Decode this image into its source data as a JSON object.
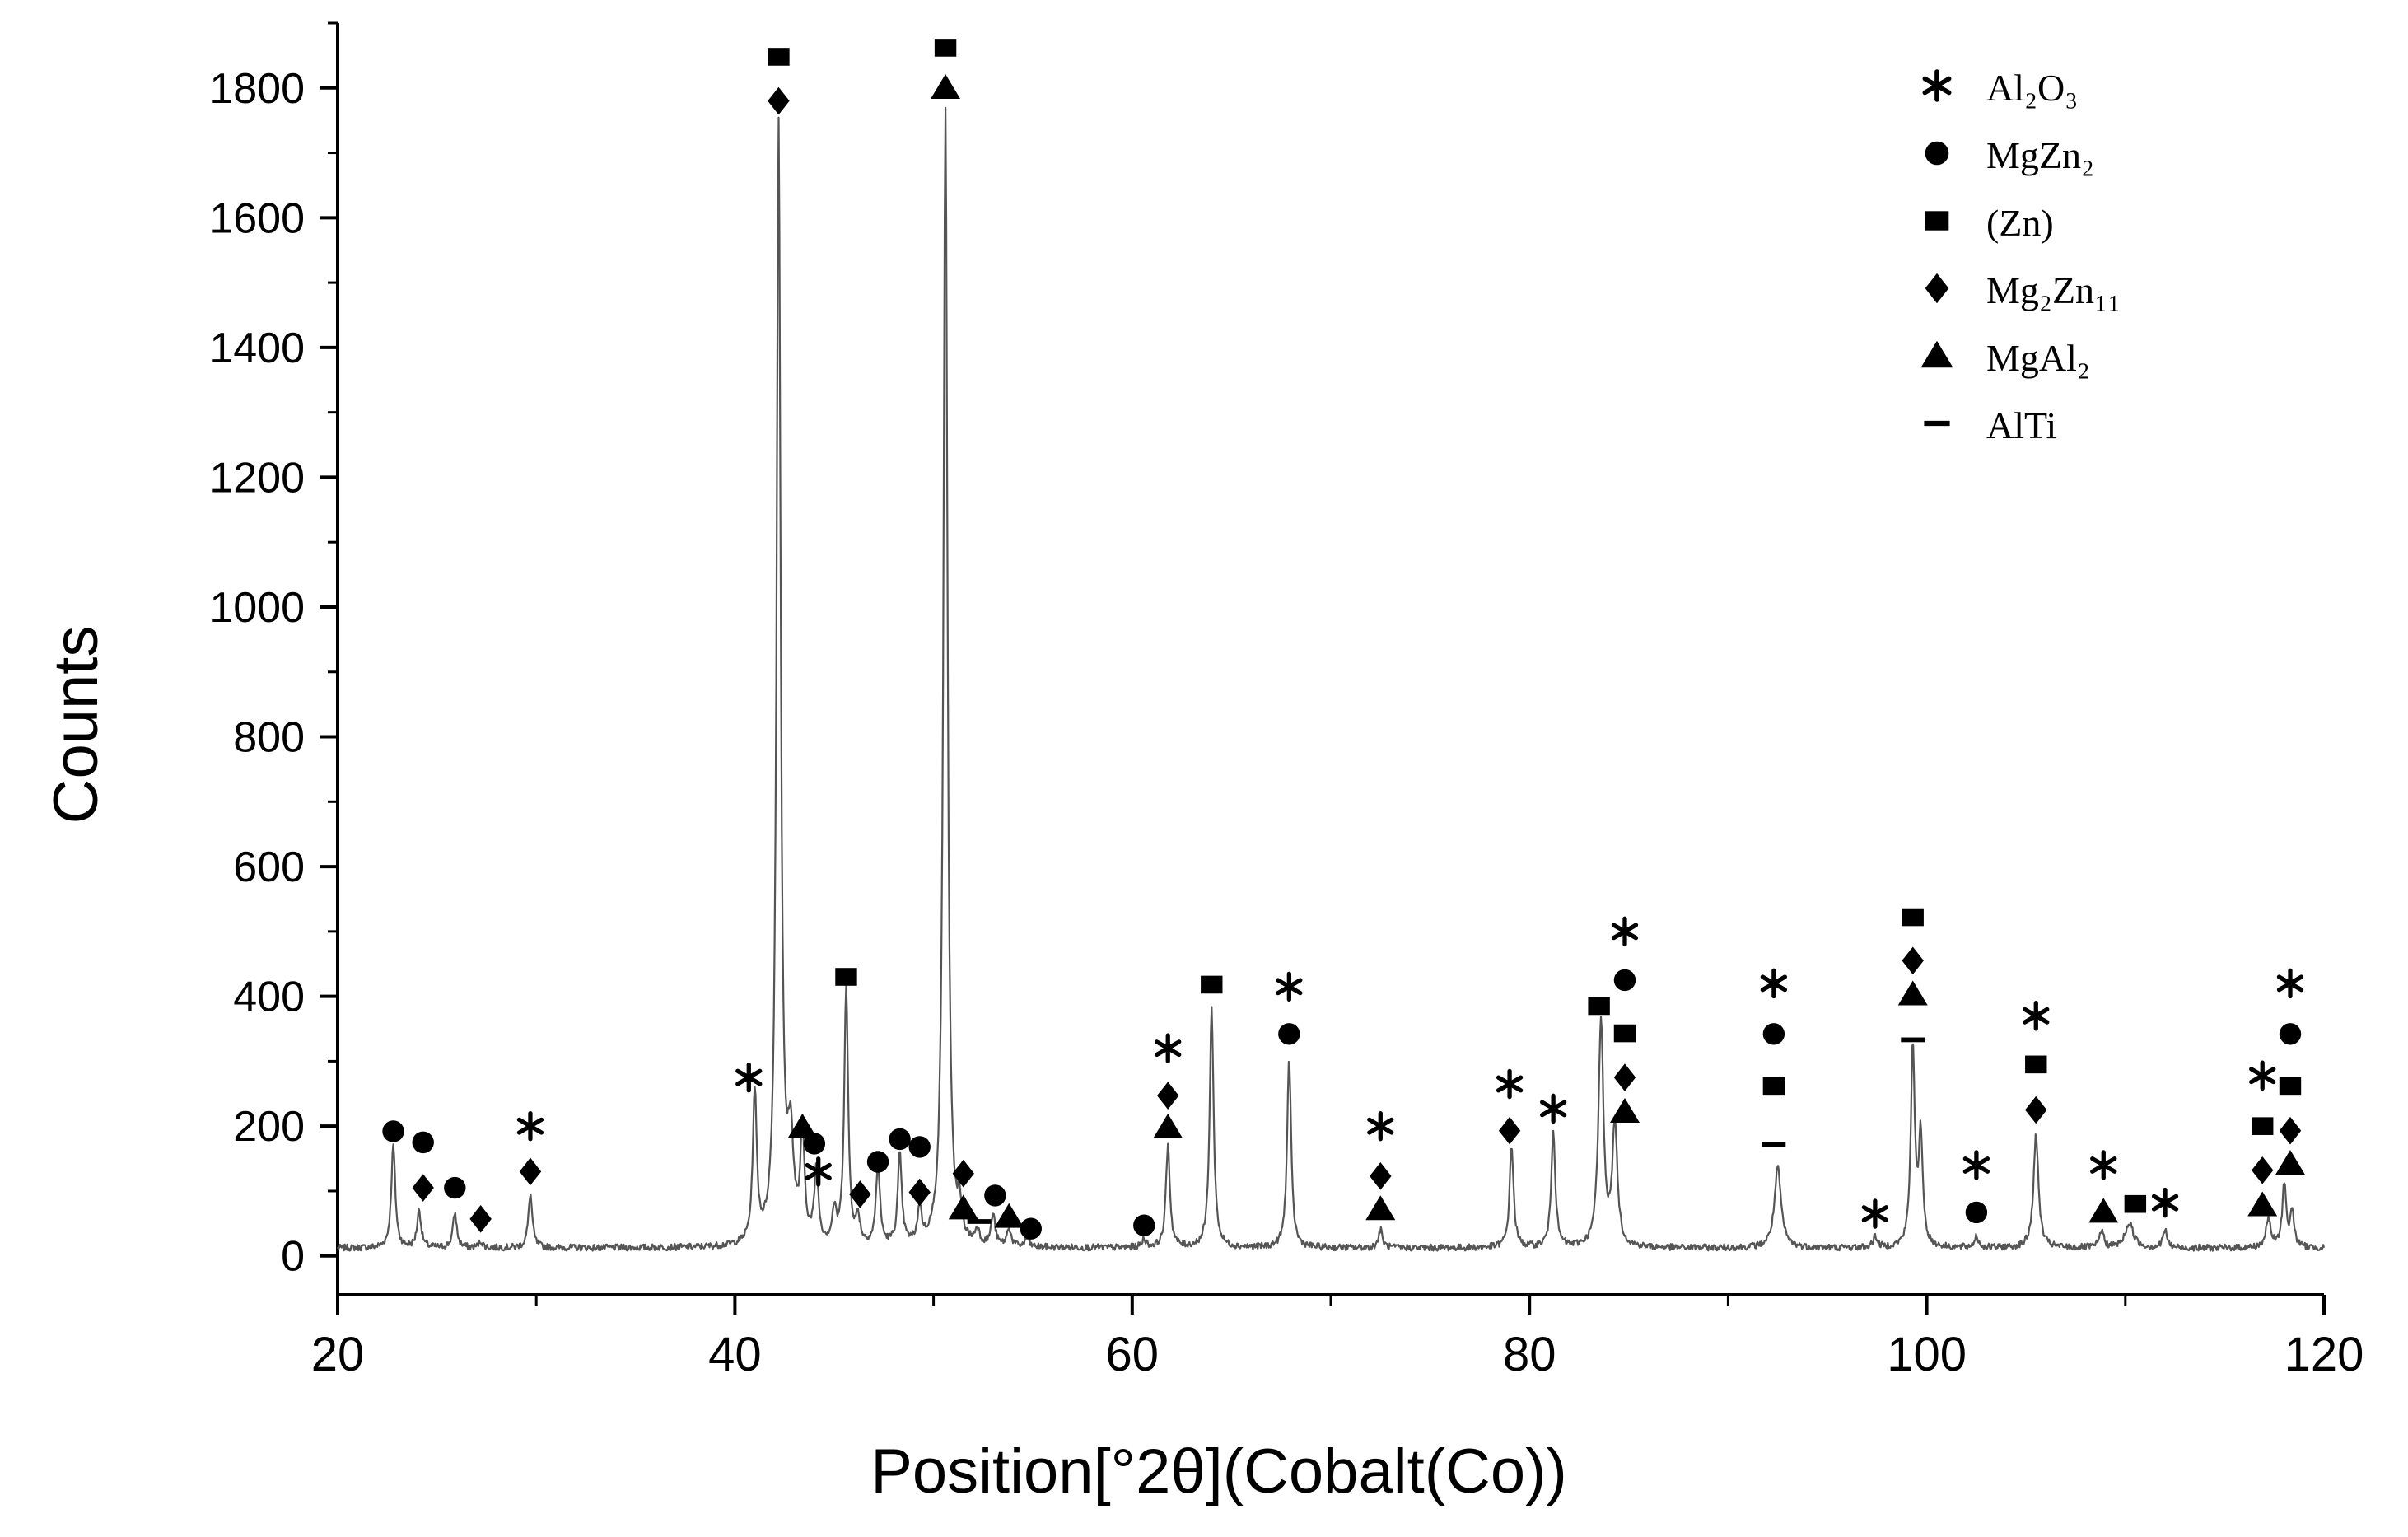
{
  "chart_data": {
    "type": "line",
    "title": "",
    "xlabel": "Position[°2θ](Cobalt(Co))",
    "ylabel": "Counts",
    "xlim": [
      20,
      120
    ],
    "ylim": [
      -60,
      1900
    ],
    "xticks": [
      "20",
      "40",
      "60",
      "80",
      "100",
      "120"
    ],
    "yticks": [
      "0",
      "200",
      "400",
      "600",
      "800",
      "1000",
      "1200",
      "1400",
      "1600",
      "1800"
    ],
    "grid": false,
    "legend_position": "top-right",
    "color": "#555555",
    "baseline": 12,
    "peaks": [
      {
        "x": 22.8,
        "y": 170,
        "w": 0.12
      },
      {
        "x": 24.1,
        "y": 70,
        "w": 0.12
      },
      {
        "x": 25.9,
        "y": 65,
        "w": 0.12
      },
      {
        "x": 27.2,
        "y": 22,
        "w": 0.12
      },
      {
        "x": 29.7,
        "y": 95,
        "w": 0.12
      },
      {
        "x": 41.0,
        "y": 245,
        "w": 0.12
      },
      {
        "x": 42.2,
        "y": 1740,
        "w": 0.12
      },
      {
        "x": 42.8,
        "y": 160,
        "w": 0.18
      },
      {
        "x": 43.4,
        "y": 180,
        "w": 0.12
      },
      {
        "x": 44.1,
        "y": 125,
        "w": 0.12
      },
      {
        "x": 45.0,
        "y": 60,
        "w": 0.12
      },
      {
        "x": 45.6,
        "y": 405,
        "w": 0.12
      },
      {
        "x": 46.2,
        "y": 50,
        "w": 0.12
      },
      {
        "x": 47.2,
        "y": 135,
        "w": 0.12
      },
      {
        "x": 48.3,
        "y": 150,
        "w": 0.12
      },
      {
        "x": 49.3,
        "y": 65,
        "w": 0.12
      },
      {
        "x": 50.6,
        "y": 1770,
        "w": 0.12
      },
      {
        "x": 51.3,
        "y": 60,
        "w": 0.12
      },
      {
        "x": 52.2,
        "y": 35,
        "w": 0.12
      },
      {
        "x": 53.0,
        "y": 60,
        "w": 0.12
      },
      {
        "x": 53.8,
        "y": 40,
        "w": 0.12
      },
      {
        "x": 54.7,
        "y": 25,
        "w": 0.12
      },
      {
        "x": 60.6,
        "y": 25,
        "w": 0.12
      },
      {
        "x": 61.8,
        "y": 170,
        "w": 0.12
      },
      {
        "x": 64.0,
        "y": 380,
        "w": 0.12
      },
      {
        "x": 67.9,
        "y": 305,
        "w": 0.12
      },
      {
        "x": 72.5,
        "y": 40,
        "w": 0.12
      },
      {
        "x": 79.1,
        "y": 170,
        "w": 0.12
      },
      {
        "x": 81.2,
        "y": 195,
        "w": 0.12
      },
      {
        "x": 83.6,
        "y": 360,
        "w": 0.15
      },
      {
        "x": 84.3,
        "y": 200,
        "w": 0.15
      },
      {
        "x": 92.5,
        "y": 135,
        "w": 0.2
      },
      {
        "x": 97.4,
        "y": 30,
        "w": 0.12
      },
      {
        "x": 99.3,
        "y": 320,
        "w": 0.12
      },
      {
        "x": 99.7,
        "y": 180,
        "w": 0.12
      },
      {
        "x": 102.5,
        "y": 30,
        "w": 0.12
      },
      {
        "x": 105.5,
        "y": 185,
        "w": 0.15
      },
      {
        "x": 108.8,
        "y": 40,
        "w": 0.12
      },
      {
        "x": 110.2,
        "y": 50,
        "w": 0.25
      },
      {
        "x": 112.0,
        "y": 40,
        "w": 0.12
      },
      {
        "x": 117.2,
        "y": 55,
        "w": 0.15
      },
      {
        "x": 118.0,
        "y": 110,
        "w": 0.12
      },
      {
        "x": 118.4,
        "y": 65,
        "w": 0.12
      }
    ],
    "legend": [
      {
        "marker": "star",
        "label": "Al₂O₃"
      },
      {
        "marker": "circle",
        "label": "MgZn₂"
      },
      {
        "marker": "square",
        "label": "(Zn)"
      },
      {
        "marker": "diamond",
        "label": "Mg₂Zn₁₁"
      },
      {
        "marker": "triangle",
        "label": "MgAl₂"
      },
      {
        "marker": "dash",
        "label": "AlTi"
      }
    ],
    "annotations": [
      {
        "x": 22.8,
        "y": 192,
        "marker": "circle"
      },
      {
        "x": 24.3,
        "y": 175,
        "marker": "circle"
      },
      {
        "x": 24.3,
        "y": 105,
        "marker": "diamond"
      },
      {
        "x": 25.9,
        "y": 105,
        "marker": "circle"
      },
      {
        "x": 27.2,
        "y": 57,
        "marker": "diamond"
      },
      {
        "x": 29.7,
        "y": 200,
        "marker": "star"
      },
      {
        "x": 29.7,
        "y": 130,
        "marker": "diamond"
      },
      {
        "x": 40.7,
        "y": 275,
        "marker": "star"
      },
      {
        "x": 42.2,
        "y": 1848,
        "marker": "square"
      },
      {
        "x": 42.2,
        "y": 1780,
        "marker": "diamond"
      },
      {
        "x": 43.4,
        "y": 198,
        "marker": "triangle"
      },
      {
        "x": 44.0,
        "y": 173,
        "marker": "circle"
      },
      {
        "x": 44.2,
        "y": 130,
        "marker": "star"
      },
      {
        "x": 45.6,
        "y": 430,
        "marker": "square"
      },
      {
        "x": 46.3,
        "y": 95,
        "marker": "diamond"
      },
      {
        "x": 47.2,
        "y": 145,
        "marker": "circle"
      },
      {
        "x": 48.3,
        "y": 180,
        "marker": "circle"
      },
      {
        "x": 49.3,
        "y": 168,
        "marker": "circle"
      },
      {
        "x": 49.3,
        "y": 98,
        "marker": "diamond"
      },
      {
        "x": 50.6,
        "y": 1862,
        "marker": "square"
      },
      {
        "x": 50.6,
        "y": 1800,
        "marker": "triangle"
      },
      {
        "x": 51.5,
        "y": 127,
        "marker": "diamond"
      },
      {
        "x": 51.5,
        "y": 73,
        "marker": "triangle"
      },
      {
        "x": 52.3,
        "y": 53,
        "marker": "dash"
      },
      {
        "x": 53.1,
        "y": 93,
        "marker": "circle"
      },
      {
        "x": 53.8,
        "y": 60,
        "marker": "triangle"
      },
      {
        "x": 54.9,
        "y": 42,
        "marker": "circle"
      },
      {
        "x": 60.6,
        "y": 47,
        "marker": "circle"
      },
      {
        "x": 61.8,
        "y": 320,
        "marker": "star"
      },
      {
        "x": 61.8,
        "y": 247,
        "marker": "diamond"
      },
      {
        "x": 61.8,
        "y": 198,
        "marker": "triangle"
      },
      {
        "x": 64.0,
        "y": 418,
        "marker": "square"
      },
      {
        "x": 67.9,
        "y": 415,
        "marker": "star"
      },
      {
        "x": 67.9,
        "y": 342,
        "marker": "circle"
      },
      {
        "x": 72.5,
        "y": 200,
        "marker": "star"
      },
      {
        "x": 72.5,
        "y": 123,
        "marker": "diamond"
      },
      {
        "x": 72.5,
        "y": 72,
        "marker": "triangle"
      },
      {
        "x": 79.0,
        "y": 265,
        "marker": "star"
      },
      {
        "x": 79.0,
        "y": 193,
        "marker": "diamond"
      },
      {
        "x": 81.2,
        "y": 227,
        "marker": "star"
      },
      {
        "x": 83.5,
        "y": 385,
        "marker": "square"
      },
      {
        "x": 84.8,
        "y": 500,
        "marker": "star"
      },
      {
        "x": 84.8,
        "y": 425,
        "marker": "circle"
      },
      {
        "x": 84.8,
        "y": 343,
        "marker": "square"
      },
      {
        "x": 84.8,
        "y": 275,
        "marker": "diamond"
      },
      {
        "x": 84.8,
        "y": 222,
        "marker": "triangle"
      },
      {
        "x": 92.3,
        "y": 420,
        "marker": "star"
      },
      {
        "x": 92.3,
        "y": 342,
        "marker": "circle"
      },
      {
        "x": 92.3,
        "y": 262,
        "marker": "square"
      },
      {
        "x": 92.3,
        "y": 172,
        "marker": "dash"
      },
      {
        "x": 97.4,
        "y": 65,
        "marker": "star"
      },
      {
        "x": 99.3,
        "y": 522,
        "marker": "square"
      },
      {
        "x": 99.3,
        "y": 455,
        "marker": "diamond"
      },
      {
        "x": 99.3,
        "y": 403,
        "marker": "triangle"
      },
      {
        "x": 99.3,
        "y": 333,
        "marker": "dash"
      },
      {
        "x": 102.5,
        "y": 140,
        "marker": "star"
      },
      {
        "x": 102.5,
        "y": 67,
        "marker": "circle"
      },
      {
        "x": 105.5,
        "y": 370,
        "marker": "star"
      },
      {
        "x": 105.5,
        "y": 295,
        "marker": "square"
      },
      {
        "x": 105.5,
        "y": 225,
        "marker": "diamond"
      },
      {
        "x": 108.9,
        "y": 140,
        "marker": "star"
      },
      {
        "x": 108.9,
        "y": 68,
        "marker": "triangle"
      },
      {
        "x": 110.5,
        "y": 80,
        "marker": "square"
      },
      {
        "x": 112.0,
        "y": 82,
        "marker": "star"
      },
      {
        "x": 116.9,
        "y": 278,
        "marker": "star"
      },
      {
        "x": 116.9,
        "y": 200,
        "marker": "square"
      },
      {
        "x": 116.9,
        "y": 132,
        "marker": "diamond"
      },
      {
        "x": 116.9,
        "y": 78,
        "marker": "triangle"
      },
      {
        "x": 118.3,
        "y": 420,
        "marker": "star"
      },
      {
        "x": 118.3,
        "y": 342,
        "marker": "circle"
      },
      {
        "x": 118.3,
        "y": 262,
        "marker": "square"
      },
      {
        "x": 118.3,
        "y": 193,
        "marker": "diamond"
      },
      {
        "x": 118.3,
        "y": 142,
        "marker": "triangle"
      }
    ]
  }
}
